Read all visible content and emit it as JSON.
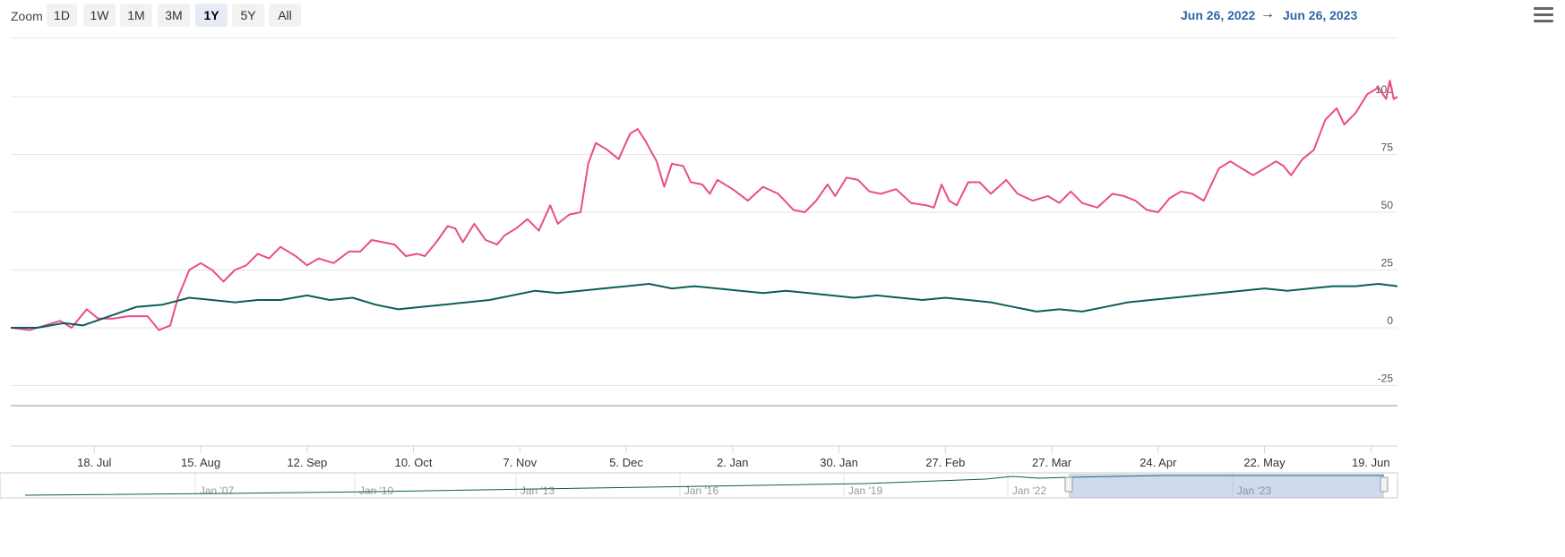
{
  "toolbar": {
    "zoom_label": "Zoom",
    "buttons": [
      "1D",
      "1W",
      "1M",
      "3M",
      "1Y",
      "5Y",
      "All"
    ],
    "active_button": "1Y",
    "range_from": "Jun 26, 2022",
    "range_arrow": "→",
    "range_to": "Jun 26, 2023",
    "menu_icon": "hamburger-menu-icon"
  },
  "colors": {
    "series_pink": "#ea4c89",
    "series_green": "#0b5e57",
    "range_text": "#2f63a8"
  },
  "chart_data": {
    "type": "line",
    "title": "",
    "xlabel": "",
    "ylabel": "",
    "ylim": [
      -25,
      110
    ],
    "yticks": [
      -25,
      0,
      25,
      50,
      75,
      100
    ],
    "xticks": [
      {
        "date": "2022-07-18",
        "label": "18. Jul"
      },
      {
        "date": "2022-08-15",
        "label": "15. Aug"
      },
      {
        "date": "2022-09-12",
        "label": "12. Sep"
      },
      {
        "date": "2022-10-10",
        "label": "10. Oct"
      },
      {
        "date": "2022-11-07",
        "label": "7. Nov"
      },
      {
        "date": "2022-12-05",
        "label": "5. Dec"
      },
      {
        "date": "2023-01-02",
        "label": "2. Jan"
      },
      {
        "date": "2023-01-30",
        "label": "30. Jan"
      },
      {
        "date": "2023-02-27",
        "label": "27. Feb"
      },
      {
        "date": "2023-03-27",
        "label": "27. Mar"
      },
      {
        "date": "2023-04-24",
        "label": "24. Apr"
      },
      {
        "date": "2023-05-22",
        "label": "22. May"
      },
      {
        "date": "2023-06-19",
        "label": "19. Jun"
      }
    ],
    "xlim": [
      "2022-06-26",
      "2023-06-26"
    ],
    "grid": true,
    "legend": "none",
    "series": [
      {
        "color": "#ea4c89",
        "points": [
          [
            "2022-06-26",
            0
          ],
          [
            "2022-07-01",
            -1
          ],
          [
            "2022-07-05",
            1
          ],
          [
            "2022-07-09",
            3
          ],
          [
            "2022-07-12",
            0
          ],
          [
            "2022-07-16",
            8
          ],
          [
            "2022-07-19",
            4
          ],
          [
            "2022-07-23",
            4
          ],
          [
            "2022-07-27",
            5
          ],
          [
            "2022-08-01",
            5
          ],
          [
            "2022-08-04",
            -1
          ],
          [
            "2022-08-07",
            1
          ],
          [
            "2022-08-09",
            13
          ],
          [
            "2022-08-12",
            25
          ],
          [
            "2022-08-15",
            28
          ],
          [
            "2022-08-18",
            25
          ],
          [
            "2022-08-21",
            20
          ],
          [
            "2022-08-24",
            25
          ],
          [
            "2022-08-27",
            27
          ],
          [
            "2022-08-30",
            32
          ],
          [
            "2022-09-02",
            30
          ],
          [
            "2022-09-05",
            35
          ],
          [
            "2022-09-09",
            31
          ],
          [
            "2022-09-12",
            27
          ],
          [
            "2022-09-15",
            30
          ],
          [
            "2022-09-19",
            28
          ],
          [
            "2022-09-23",
            33
          ],
          [
            "2022-09-26",
            33
          ],
          [
            "2022-09-29",
            38
          ],
          [
            "2022-10-02",
            37
          ],
          [
            "2022-10-05",
            36
          ],
          [
            "2022-10-08",
            31
          ],
          [
            "2022-10-11",
            32
          ],
          [
            "2022-10-13",
            31
          ],
          [
            "2022-10-16",
            37
          ],
          [
            "2022-10-19",
            44
          ],
          [
            "2022-10-21",
            43
          ],
          [
            "2022-10-23",
            37
          ],
          [
            "2022-10-26",
            45
          ],
          [
            "2022-10-29",
            38
          ],
          [
            "2022-11-01",
            36
          ],
          [
            "2022-11-03",
            40
          ],
          [
            "2022-11-06",
            43
          ],
          [
            "2022-11-09",
            47
          ],
          [
            "2022-11-12",
            42
          ],
          [
            "2022-11-15",
            53
          ],
          [
            "2022-11-17",
            45
          ],
          [
            "2022-11-20",
            49
          ],
          [
            "2022-11-23",
            50
          ],
          [
            "2022-11-25",
            71
          ],
          [
            "2022-11-27",
            80
          ],
          [
            "2022-11-30",
            77
          ],
          [
            "2022-12-03",
            73
          ],
          [
            "2022-12-06",
            84
          ],
          [
            "2022-12-08",
            86
          ],
          [
            "2022-12-10",
            81
          ],
          [
            "2022-12-13",
            72
          ],
          [
            "2022-12-15",
            61
          ],
          [
            "2022-12-17",
            71
          ],
          [
            "2022-12-20",
            70
          ],
          [
            "2022-12-22",
            63
          ],
          [
            "2022-12-25",
            62
          ],
          [
            "2022-12-27",
            58
          ],
          [
            "2022-12-29",
            64
          ],
          [
            "2023-01-02",
            60
          ],
          [
            "2023-01-06",
            55
          ],
          [
            "2023-01-10",
            61
          ],
          [
            "2023-01-14",
            58
          ],
          [
            "2023-01-18",
            51
          ],
          [
            "2023-01-21",
            50
          ],
          [
            "2023-01-24",
            55
          ],
          [
            "2023-01-27",
            62
          ],
          [
            "2023-01-29",
            57
          ],
          [
            "2023-02-01",
            65
          ],
          [
            "2023-02-04",
            64
          ],
          [
            "2023-02-07",
            59
          ],
          [
            "2023-02-10",
            58
          ],
          [
            "2023-02-14",
            60
          ],
          [
            "2023-02-18",
            54
          ],
          [
            "2023-02-22",
            53
          ],
          [
            "2023-02-24",
            52
          ],
          [
            "2023-02-26",
            62
          ],
          [
            "2023-02-28",
            55
          ],
          [
            "2023-03-02",
            53
          ],
          [
            "2023-03-05",
            63
          ],
          [
            "2023-03-08",
            63
          ],
          [
            "2023-03-11",
            58
          ],
          [
            "2023-03-15",
            64
          ],
          [
            "2023-03-18",
            58
          ],
          [
            "2023-03-22",
            55
          ],
          [
            "2023-03-26",
            57
          ],
          [
            "2023-03-29",
            54
          ],
          [
            "2023-04-01",
            59
          ],
          [
            "2023-04-04",
            54
          ],
          [
            "2023-04-08",
            52
          ],
          [
            "2023-04-12",
            58
          ],
          [
            "2023-04-15",
            57
          ],
          [
            "2023-04-18",
            55
          ],
          [
            "2023-04-21",
            51
          ],
          [
            "2023-04-24",
            50
          ],
          [
            "2023-04-27",
            56
          ],
          [
            "2023-04-30",
            59
          ],
          [
            "2023-05-03",
            58
          ],
          [
            "2023-05-06",
            55
          ],
          [
            "2023-05-10",
            69
          ],
          [
            "2023-05-13",
            72
          ],
          [
            "2023-05-16",
            69
          ],
          [
            "2023-05-19",
            66
          ],
          [
            "2023-05-22",
            69
          ],
          [
            "2023-05-25",
            72
          ],
          [
            "2023-05-27",
            70
          ],
          [
            "2023-05-29",
            66
          ],
          [
            "2023-06-01",
            73
          ],
          [
            "2023-06-04",
            77
          ],
          [
            "2023-06-07",
            90
          ],
          [
            "2023-06-10",
            95
          ],
          [
            "2023-06-12",
            88
          ],
          [
            "2023-06-15",
            93
          ],
          [
            "2023-06-18",
            101
          ],
          [
            "2023-06-21",
            104
          ],
          [
            "2023-06-23",
            99
          ],
          [
            "2023-06-24",
            107
          ],
          [
            "2023-06-25",
            99
          ],
          [
            "2023-06-26",
            100
          ]
        ]
      },
      {
        "color": "#0b5e57",
        "points": [
          [
            "2022-06-26",
            0
          ],
          [
            "2022-07-03",
            0
          ],
          [
            "2022-07-10",
            2
          ],
          [
            "2022-07-15",
            1
          ],
          [
            "2022-07-22",
            5
          ],
          [
            "2022-07-29",
            9
          ],
          [
            "2022-08-05",
            10
          ],
          [
            "2022-08-12",
            13
          ],
          [
            "2022-08-18",
            12
          ],
          [
            "2022-08-24",
            11
          ],
          [
            "2022-08-30",
            12
          ],
          [
            "2022-09-05",
            12
          ],
          [
            "2022-09-12",
            14
          ],
          [
            "2022-09-18",
            12
          ],
          [
            "2022-09-24",
            13
          ],
          [
            "2022-09-30",
            10
          ],
          [
            "2022-10-06",
            8
          ],
          [
            "2022-10-12",
            9
          ],
          [
            "2022-10-18",
            10
          ],
          [
            "2022-10-24",
            11
          ],
          [
            "2022-10-30",
            12
          ],
          [
            "2022-11-05",
            14
          ],
          [
            "2022-11-11",
            16
          ],
          [
            "2022-11-17",
            15
          ],
          [
            "2022-11-23",
            16
          ],
          [
            "2022-11-29",
            17
          ],
          [
            "2022-12-05",
            18
          ],
          [
            "2022-12-11",
            19
          ],
          [
            "2022-12-17",
            17
          ],
          [
            "2022-12-23",
            18
          ],
          [
            "2022-12-29",
            17
          ],
          [
            "2023-01-04",
            16
          ],
          [
            "2023-01-10",
            15
          ],
          [
            "2023-01-16",
            16
          ],
          [
            "2023-01-22",
            15
          ],
          [
            "2023-01-28",
            14
          ],
          [
            "2023-02-03",
            13
          ],
          [
            "2023-02-09",
            14
          ],
          [
            "2023-02-15",
            13
          ],
          [
            "2023-02-21",
            12
          ],
          [
            "2023-02-27",
            13
          ],
          [
            "2023-03-05",
            12
          ],
          [
            "2023-03-11",
            11
          ],
          [
            "2023-03-17",
            9
          ],
          [
            "2023-03-23",
            7
          ],
          [
            "2023-03-29",
            8
          ],
          [
            "2023-04-04",
            7
          ],
          [
            "2023-04-10",
            9
          ],
          [
            "2023-04-16",
            11
          ],
          [
            "2023-04-22",
            12
          ],
          [
            "2023-04-28",
            13
          ],
          [
            "2023-05-04",
            14
          ],
          [
            "2023-05-10",
            15
          ],
          [
            "2023-05-16",
            16
          ],
          [
            "2023-05-22",
            17
          ],
          [
            "2023-05-28",
            16
          ],
          [
            "2023-06-03",
            17
          ],
          [
            "2023-06-09",
            18
          ],
          [
            "2023-06-15",
            18
          ],
          [
            "2023-06-21",
            19
          ],
          [
            "2023-06-26",
            18
          ]
        ]
      }
    ]
  },
  "navigator": {
    "labels": [
      "Jan '07",
      "Jan '10",
      "Jan '13",
      "Jan '16",
      "Jan '19",
      "Jan '22",
      "Jan '23"
    ],
    "selected_range": [
      "2022-06-26",
      "2023-06-26"
    ]
  }
}
